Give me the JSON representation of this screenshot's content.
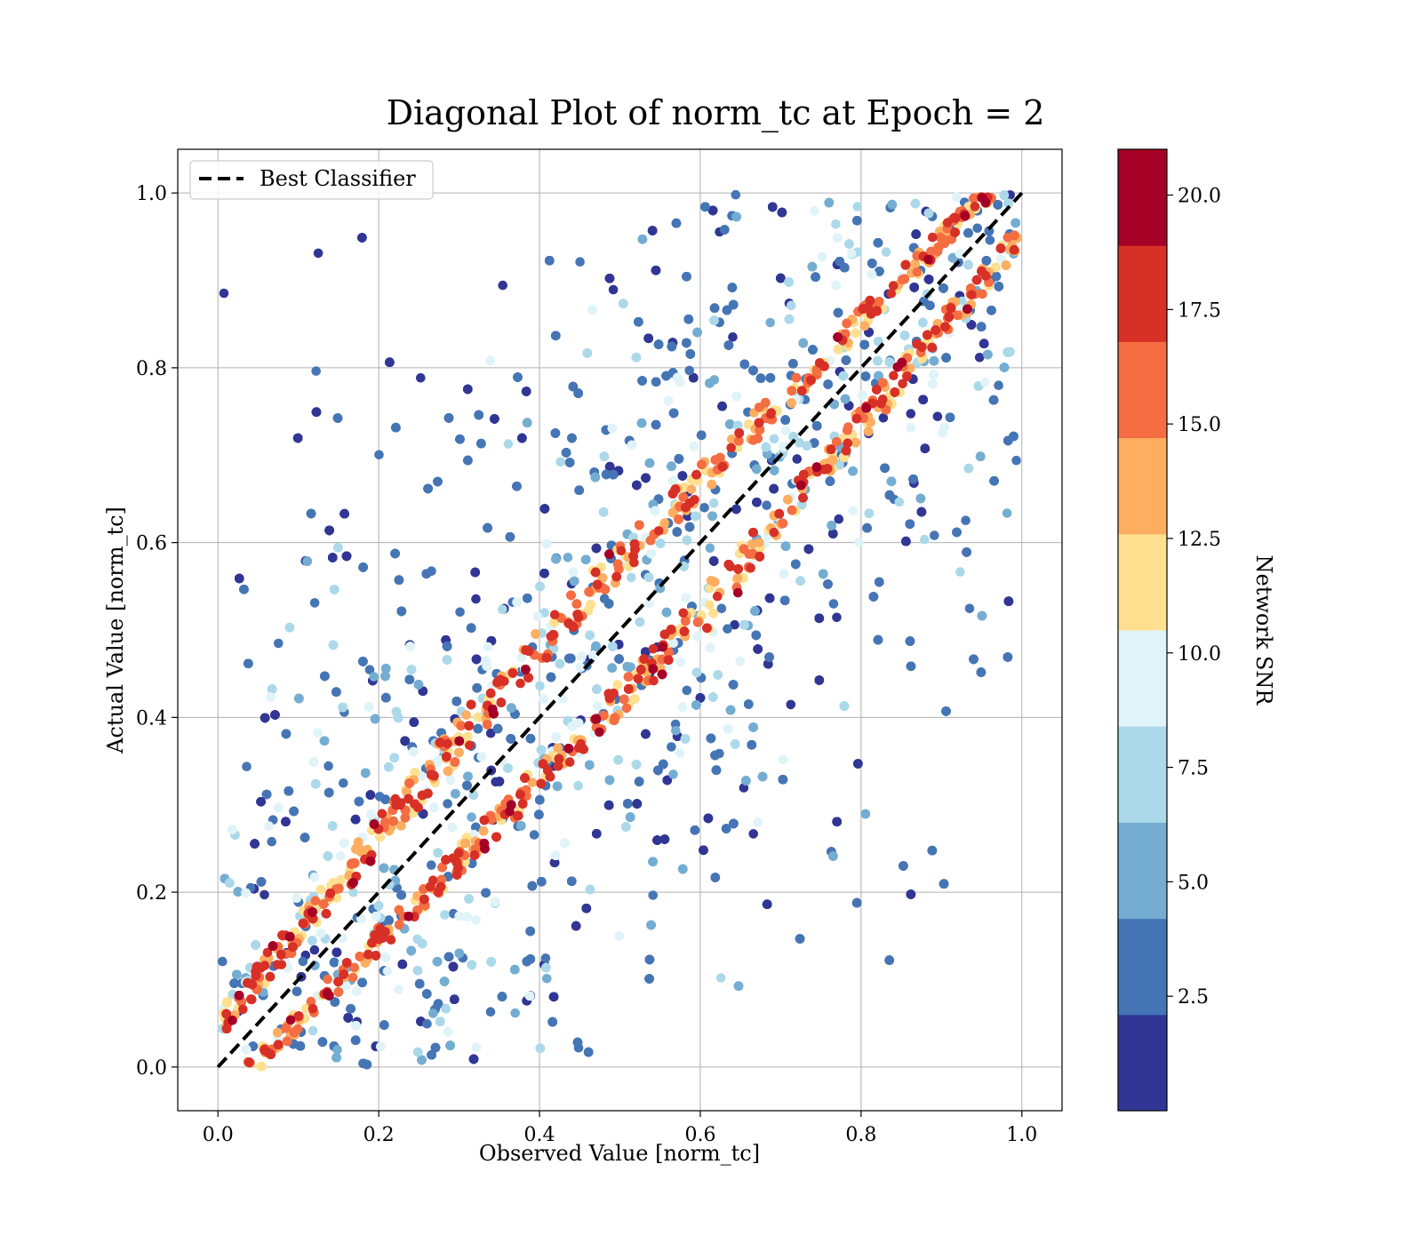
{
  "chart_data": {
    "type": "scatter",
    "title": "Diagonal Plot of norm_tc at Epoch = 2",
    "xlabel": "Observed Value [norm_tc]",
    "ylabel": "Actual Value [norm_tc]",
    "xlim": [
      -0.05,
      1.05
    ],
    "ylim": [
      -0.05,
      1.05
    ],
    "xticks": [
      "0.0",
      "0.2",
      "0.4",
      "0.6",
      "0.8",
      "1.0"
    ],
    "yticks": [
      "0.0",
      "0.2",
      "0.4",
      "0.6",
      "0.8",
      "1.0"
    ],
    "grid": true,
    "legend": {
      "placement": "top-left",
      "entries": [
        "Best Classifier"
      ]
    },
    "reference_line": {
      "name": "Best Classifier",
      "style": "dashed",
      "color": "#000000",
      "x": [
        0,
        1
      ],
      "y": [
        0,
        1
      ]
    },
    "colorbar": {
      "label": "Network SNR",
      "min": 0.0,
      "max": 21.0,
      "ticks": [
        "2.5",
        "5.0",
        "7.5",
        "10.0",
        "12.5",
        "15.0",
        "17.5",
        "20.0"
      ],
      "colormap": [
        "#313695",
        "#4575b4",
        "#74add1",
        "#abd9e9",
        "#e0f3f8",
        "#fee090",
        "#fdae61",
        "#f46d43",
        "#d73027",
        "#a50026"
      ]
    },
    "point_count_estimate": 12000,
    "point_bands": [
      {
        "description": "near diagonal offset band above",
        "snr_range": [
          11,
          20
        ]
      },
      {
        "description": "near diagonal offset band below",
        "snr_range": [
          11,
          20
        ]
      },
      {
        "description": "background field",
        "snr_range": [
          3,
          10
        ]
      },
      {
        "description": "outer sparse scatter",
        "snr_range": [
          0.5,
          4
        ]
      }
    ]
  }
}
